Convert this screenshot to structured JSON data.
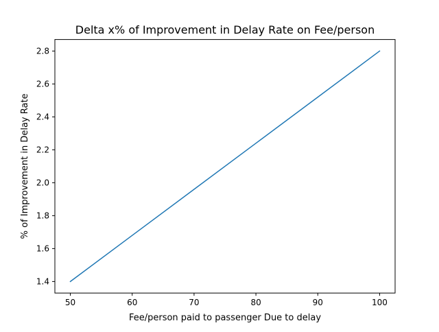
{
  "chart_data": {
    "type": "line",
    "title": "Delta x% of Improvement in Delay Rate on Fee/person",
    "xlabel": "Fee/person paid to passenger Due to delay",
    "ylabel": "% of Improvement in Delay Rate",
    "xlim": [
      47.5,
      102.5
    ],
    "ylim": [
      1.33,
      2.87
    ],
    "xticks": [
      50,
      60,
      70,
      80,
      90,
      100
    ],
    "xtick_labels": [
      "50",
      "60",
      "70",
      "80",
      "90",
      "100"
    ],
    "yticks": [
      1.4,
      1.6,
      1.8,
      2.0,
      2.2,
      2.4,
      2.6,
      2.8
    ],
    "ytick_labels": [
      "1.4",
      "1.6",
      "1.8",
      "2.0",
      "2.2",
      "2.4",
      "2.6",
      "2.8"
    ],
    "grid": false,
    "series": [
      {
        "color": "#1f77b4",
        "x": [
          50,
          60,
          70,
          80,
          90,
          100
        ],
        "y": [
          1.4,
          1.68,
          1.96,
          2.24,
          2.52,
          2.8
        ]
      }
    ]
  }
}
